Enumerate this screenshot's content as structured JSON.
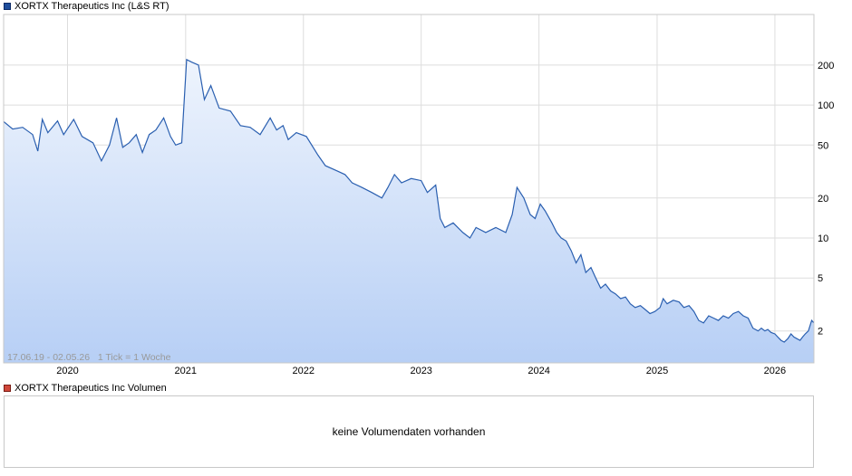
{
  "legend": {
    "price_label": "XORTX Therapeutics Inc (L&S RT)",
    "volume_label": "XORTX Therapeutics Inc Volumen"
  },
  "info_text": "17.06.19 - 02.05.26   1 Tick = 1 Woche",
  "volume_message": "keine Volumendaten vorhanden",
  "colors": {
    "line": "#2a5fb0",
    "fill_top": "#eef4fd",
    "fill_bottom": "#b7cff5",
    "grid": "#dddddd",
    "frame": "#c8c8c8"
  },
  "chart_data": {
    "type": "area",
    "title": "XORTX Therapeutics Inc (L&S RT)",
    "y_scale": "log",
    "ylim": [
      1.15,
      480
    ],
    "xlim": [
      "2019-06-17",
      "2026-05-02"
    ],
    "y_ticks": [
      {
        "value": 2,
        "label": "2"
      },
      {
        "value": 5,
        "label": "5"
      },
      {
        "value": 10,
        "label": "10"
      },
      {
        "value": 20,
        "label": "20"
      },
      {
        "value": 50,
        "label": "50"
      },
      {
        "value": 100,
        "label": "100"
      },
      {
        "value": 200,
        "label": "200"
      }
    ],
    "x_ticks": [
      {
        "date": "2020-01-01",
        "label": "2020"
      },
      {
        "date": "2021-01-01",
        "label": "2021"
      },
      {
        "date": "2022-01-01",
        "label": "2022"
      },
      {
        "date": "2023-01-01",
        "label": "2023"
      },
      {
        "date": "2024-01-01",
        "label": "2024"
      },
      {
        "date": "2025-01-01",
        "label": "2025"
      },
      {
        "date": "2026-01-01",
        "label": "2026"
      }
    ],
    "grid": true,
    "series": [
      {
        "values": [
          [
            "2019-06-17",
            75
          ],
          [
            "2019-07-15",
            66
          ],
          [
            "2019-08-15",
            68
          ],
          [
            "2019-09-15",
            60
          ],
          [
            "2019-10-01",
            45
          ],
          [
            "2019-10-15",
            78
          ],
          [
            "2019-11-01",
            62
          ],
          [
            "2019-12-01",
            76
          ],
          [
            "2019-12-20",
            60
          ],
          [
            "2020-01-20",
            78
          ],
          [
            "2020-02-15",
            58
          ],
          [
            "2020-03-20",
            52
          ],
          [
            "2020-04-15",
            38
          ],
          [
            "2020-05-10",
            50
          ],
          [
            "2020-06-01",
            80
          ],
          [
            "2020-06-20",
            48
          ],
          [
            "2020-07-10",
            52
          ],
          [
            "2020-08-01",
            60
          ],
          [
            "2020-08-20",
            44
          ],
          [
            "2020-09-10",
            60
          ],
          [
            "2020-10-01",
            65
          ],
          [
            "2020-10-25",
            80
          ],
          [
            "2020-11-15",
            58
          ],
          [
            "2020-12-01",
            50
          ],
          [
            "2020-12-20",
            52
          ],
          [
            "2021-01-04",
            220
          ],
          [
            "2021-01-20",
            210
          ],
          [
            "2021-02-10",
            200
          ],
          [
            "2021-02-28",
            110
          ],
          [
            "2021-03-20",
            140
          ],
          [
            "2021-04-15",
            95
          ],
          [
            "2021-05-20",
            90
          ],
          [
            "2021-06-20",
            70
          ],
          [
            "2021-07-20",
            68
          ],
          [
            "2021-08-20",
            60
          ],
          [
            "2021-09-20",
            80
          ],
          [
            "2021-10-10",
            65
          ],
          [
            "2021-10-30",
            70
          ],
          [
            "2021-11-15",
            55
          ],
          [
            "2021-12-10",
            62
          ],
          [
            "2022-01-10",
            58
          ],
          [
            "2022-02-15",
            42
          ],
          [
            "2022-03-10",
            35
          ],
          [
            "2022-04-15",
            32
          ],
          [
            "2022-05-10",
            30
          ],
          [
            "2022-06-01",
            26
          ],
          [
            "2022-07-01",
            24
          ],
          [
            "2022-08-01",
            22
          ],
          [
            "2022-09-01",
            20
          ],
          [
            "2022-09-20",
            24
          ],
          [
            "2022-10-10",
            30
          ],
          [
            "2022-11-01",
            26
          ],
          [
            "2022-12-01",
            28
          ],
          [
            "2023-01-01",
            27
          ],
          [
            "2023-01-20",
            22
          ],
          [
            "2023-02-15",
            25
          ],
          [
            "2023-03-01",
            14
          ],
          [
            "2023-03-15",
            12
          ],
          [
            "2023-04-10",
            13
          ],
          [
            "2023-05-10",
            11
          ],
          [
            "2023-06-01",
            10
          ],
          [
            "2023-06-20",
            12
          ],
          [
            "2023-07-20",
            11
          ],
          [
            "2023-08-20",
            12
          ],
          [
            "2023-09-20",
            11
          ],
          [
            "2023-10-10",
            15
          ],
          [
            "2023-10-25",
            24
          ],
          [
            "2023-11-15",
            20
          ],
          [
            "2023-12-05",
            15
          ],
          [
            "2023-12-20",
            14
          ],
          [
            "2024-01-05",
            18
          ],
          [
            "2024-01-20",
            16
          ],
          [
            "2024-02-10",
            13
          ],
          [
            "2024-02-25",
            11
          ],
          [
            "2024-03-10",
            10
          ],
          [
            "2024-03-25",
            9.5
          ],
          [
            "2024-04-10",
            8
          ],
          [
            "2024-04-25",
            6.5
          ],
          [
            "2024-05-10",
            7.5
          ],
          [
            "2024-05-25",
            5.5
          ],
          [
            "2024-06-10",
            6
          ],
          [
            "2024-06-25",
            5
          ],
          [
            "2024-07-10",
            4.2
          ],
          [
            "2024-07-25",
            4.5
          ],
          [
            "2024-08-10",
            4
          ],
          [
            "2024-08-25",
            3.8
          ],
          [
            "2024-09-10",
            3.5
          ],
          [
            "2024-09-25",
            3.6
          ],
          [
            "2024-10-10",
            3.2
          ],
          [
            "2024-10-25",
            3.0
          ],
          [
            "2024-11-10",
            3.1
          ],
          [
            "2024-11-25",
            2.9
          ],
          [
            "2024-12-10",
            2.7
          ],
          [
            "2024-12-25",
            2.8
          ],
          [
            "2025-01-10",
            3.0
          ],
          [
            "2025-01-20",
            3.5
          ],
          [
            "2025-02-01",
            3.2
          ],
          [
            "2025-02-20",
            3.4
          ],
          [
            "2025-03-10",
            3.3
          ],
          [
            "2025-03-25",
            3.0
          ],
          [
            "2025-04-10",
            3.1
          ],
          [
            "2025-04-25",
            2.8
          ],
          [
            "2025-05-10",
            2.4
          ],
          [
            "2025-05-25",
            2.3
          ],
          [
            "2025-06-10",
            2.6
          ],
          [
            "2025-06-25",
            2.5
          ],
          [
            "2025-07-10",
            2.4
          ],
          [
            "2025-07-25",
            2.6
          ],
          [
            "2025-08-10",
            2.5
          ],
          [
            "2025-08-25",
            2.7
          ],
          [
            "2025-09-10",
            2.8
          ],
          [
            "2025-09-25",
            2.6
          ],
          [
            "2025-10-10",
            2.5
          ],
          [
            "2025-10-25",
            2.1
          ],
          [
            "2025-11-10",
            2.0
          ],
          [
            "2025-11-20",
            2.1
          ],
          [
            "2025-12-01",
            2.0
          ],
          [
            "2025-12-10",
            2.05
          ],
          [
            "2025-12-20",
            1.95
          ],
          [
            "2026-01-01",
            1.9
          ],
          [
            "2026-01-10",
            1.8
          ],
          [
            "2026-01-20",
            1.7
          ],
          [
            "2026-01-30",
            1.65
          ],
          [
            "2026-02-10",
            1.75
          ],
          [
            "2026-02-20",
            1.9
          ],
          [
            "2026-03-01",
            1.8
          ],
          [
            "2026-03-10",
            1.75
          ],
          [
            "2026-03-20",
            1.7
          ],
          [
            "2026-03-28",
            1.8
          ],
          [
            "2026-04-05",
            1.9
          ],
          [
            "2026-04-15",
            2.0
          ],
          [
            "2026-04-25",
            2.4
          ],
          [
            "2026-05-02",
            2.3
          ]
        ]
      }
    ]
  }
}
